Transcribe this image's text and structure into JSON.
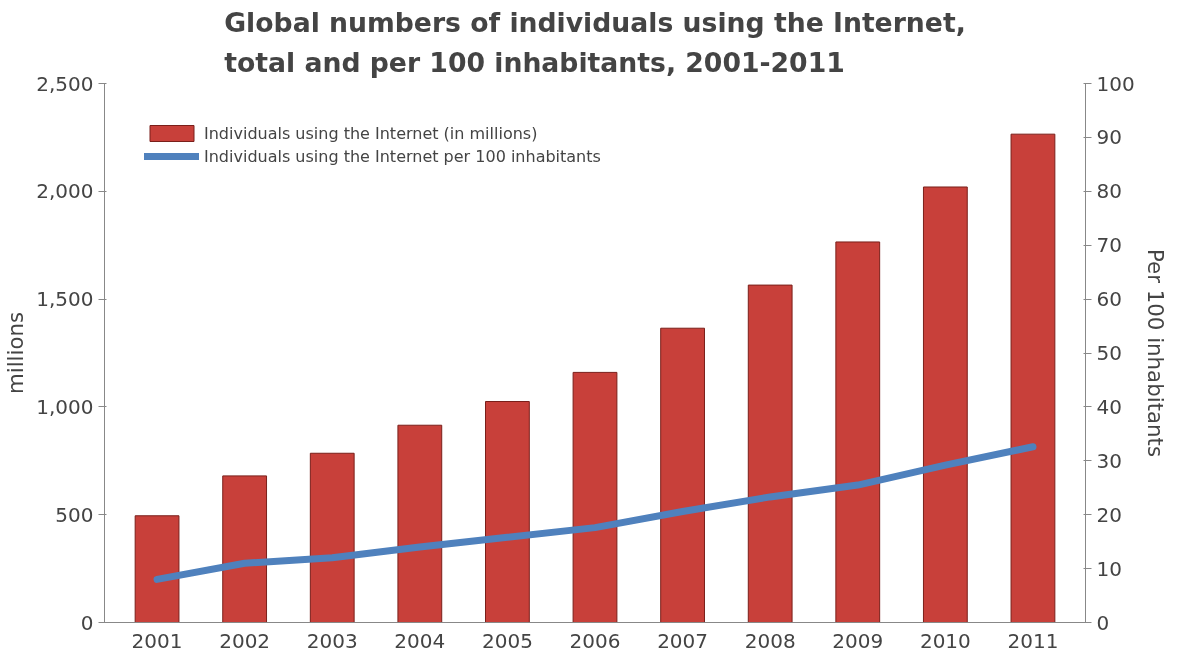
{
  "chart_data": {
    "type": "bar",
    "title": "Global numbers of individuals using the Internet, total and per 100 inhabitants, 2001-2011",
    "ylabel": "millions",
    "y2label": "Per 100 inhabitants",
    "categories": [
      "2001",
      "2002",
      "2003",
      "2004",
      "2005",
      "2006",
      "2007",
      "2008",
      "2009",
      "2010",
      "2011"
    ],
    "series": [
      {
        "name": "Individuals using the Internet (in millions)",
        "color": "#c8403a",
        "values": [
          495,
          680,
          785,
          915,
          1025,
          1160,
          1365,
          1565,
          1765,
          2020,
          2265
        ]
      },
      {
        "name": "Individuals using the Internet per 100 inhabitants",
        "type": "line",
        "axis": "y2",
        "color": "#4f81bd",
        "values": [
          8,
          11,
          12,
          14,
          15.8,
          17.6,
          20.6,
          23.3,
          25.5,
          29.2,
          32.6
        ]
      }
    ],
    "ylim": [
      0,
      2500
    ],
    "yticks": [
      0,
      {
        "value": 500,
        "label": "500"
      },
      {
        "value": 1000,
        "label": "1,000"
      },
      {
        "value": 1500,
        "label": "1,500"
      },
      {
        "value": 2000,
        "label": "2,000"
      },
      {
        "value": 2500,
        "label": "2,500"
      }
    ],
    "y2lim": [
      0,
      100
    ],
    "y2ticks": [
      0,
      10,
      20,
      30,
      40,
      50,
      60,
      70,
      80,
      90,
      100
    ],
    "grid": false,
    "legend": "top left",
    "marker": "none",
    "line_style": "solid"
  }
}
